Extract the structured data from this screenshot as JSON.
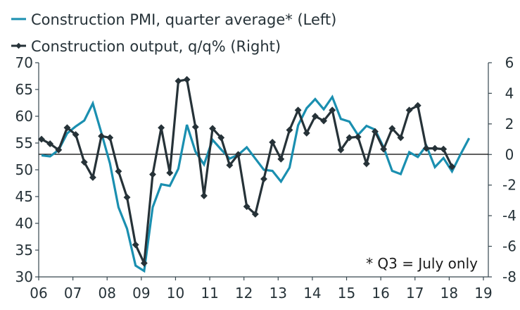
{
  "chart_data": {
    "type": "line",
    "title": "",
    "legend": {
      "placement": "top-left",
      "entries": [
        {
          "name": "Construction PMI, quarter average* (Left)",
          "color": "#1a8fb0",
          "marker": "none",
          "axis": "left"
        },
        {
          "name": "Construction output, q/q% (Right)",
          "color": "#263238",
          "marker": "diamond",
          "axis": "right"
        }
      ]
    },
    "x_tick_labels": [
      "06",
      "07",
      "08",
      "09",
      "10",
      "11",
      "12",
      "13",
      "14",
      "15",
      "16",
      "17",
      "18",
      "19"
    ],
    "x_start": "2006 Q1",
    "x_frequency": "quarterly",
    "left_axis": {
      "ylim": [
        30,
        70
      ],
      "ticks": [
        "70",
        "65",
        "60",
        "55",
        "50",
        "45",
        "40",
        "35",
        "30"
      ]
    },
    "right_axis": {
      "ylim": [
        -8,
        6
      ],
      "ticks": [
        "6",
        "4",
        "2",
        "0",
        "-2",
        "-4",
        "-6",
        "-8"
      ]
    },
    "zero_line": {
      "axis": "right",
      "value": 0
    },
    "grid": false,
    "annotation": "* Q3 = July only",
    "series": [
      {
        "name": "Construction PMI, quarter average* (Left)",
        "axis": "left",
        "color": "#1a8fb0",
        "start": "2006 Q1",
        "values": [
          52.7,
          52.5,
          53.7,
          56.8,
          58.1,
          59.2,
          62.4,
          56.9,
          51.2,
          43.0,
          39.0,
          32.1,
          31.1,
          43.0,
          47.3,
          47.0,
          50.2,
          58.4,
          53.4,
          51.0,
          55.6,
          53.8,
          52.1,
          52.8,
          54.2,
          52.1,
          50.0,
          49.8,
          47.8,
          50.4,
          58.3,
          61.5,
          63.2,
          61.3,
          63.6,
          59.5,
          59.0,
          56.5,
          58.2,
          57.5,
          54.2,
          49.8,
          49.2,
          53.3,
          52.4,
          54.5,
          50.5,
          52.2,
          49.7,
          52.9,
          55.9
        ]
      },
      {
        "name": "Construction output, q/q% (Right)",
        "axis": "right",
        "color": "#263238",
        "start": "2006 Q1",
        "values": [
          1.0,
          0.7,
          0.3,
          1.75,
          1.3,
          -0.5,
          -1.5,
          1.2,
          1.1,
          -1.1,
          -2.8,
          -5.9,
          -7.1,
          -1.3,
          1.75,
          -1.2,
          4.8,
          4.9,
          1.8,
          -2.7,
          1.7,
          1.1,
          -0.7,
          0.0,
          -3.4,
          -3.9,
          -1.6,
          0.8,
          -0.3,
          1.6,
          2.9,
          1.4,
          2.5,
          2.2,
          2.9,
          0.3,
          1.1,
          1.15,
          -0.6,
          1.5,
          0.35,
          1.7,
          1.1,
          2.9,
          3.2,
          0.4,
          0.4,
          0.35,
          -0.8
        ]
      }
    ]
  }
}
